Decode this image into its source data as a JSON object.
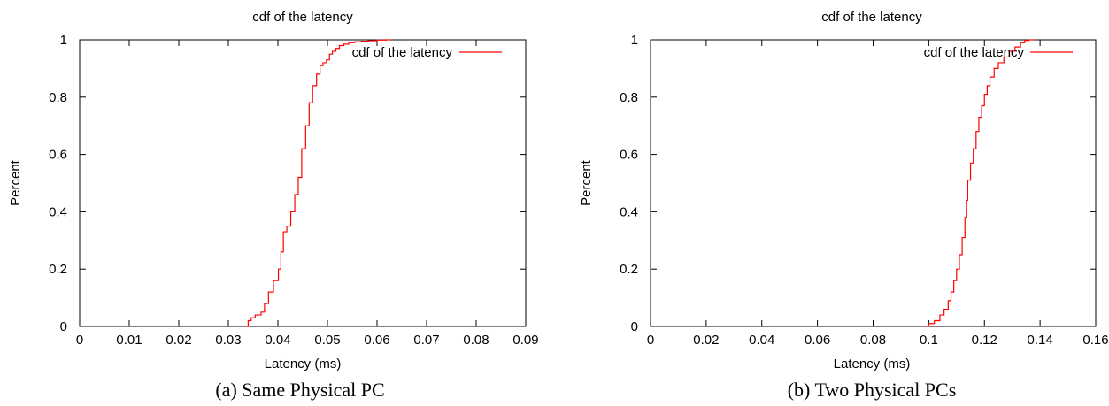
{
  "chart_data": [
    {
      "type": "line",
      "title": "cdf of the latency",
      "xlabel": "Latency (ms)",
      "ylabel": "Percent",
      "xlim": [
        0,
        0.09
      ],
      "ylim": [
        0,
        1
      ],
      "xticks": [
        "0",
        "0.01",
        "0.02",
        "0.03",
        "0.04",
        "0.05",
        "0.06",
        "0.07",
        "0.08",
        "0.09"
      ],
      "yticks": [
        "0",
        "0.2",
        "0.4",
        "0.6",
        "0.8",
        "1"
      ],
      "legend": "top-right",
      "caption": "(a) Same Physical PC",
      "color": "#ff0000",
      "series": [
        {
          "name": "cdf of the latency",
          "step": true,
          "x": [
            0.0334,
            0.034,
            0.0346,
            0.0354,
            0.0366,
            0.0373,
            0.0381,
            0.0391,
            0.0401,
            0.0406,
            0.0411,
            0.0418,
            0.0426,
            0.0434,
            0.0441,
            0.0448,
            0.0456,
            0.0463,
            0.047,
            0.0478,
            0.0485,
            0.0491,
            0.0498,
            0.0504,
            0.051,
            0.0517,
            0.0524,
            0.0533,
            0.0543,
            0.0555,
            0.0568,
            0.0582,
            0.06,
            0.0618
          ],
          "y": [
            0.0,
            0.02,
            0.03,
            0.04,
            0.05,
            0.08,
            0.12,
            0.16,
            0.2,
            0.26,
            0.33,
            0.35,
            0.4,
            0.46,
            0.52,
            0.62,
            0.7,
            0.78,
            0.84,
            0.88,
            0.91,
            0.92,
            0.93,
            0.95,
            0.96,
            0.97,
            0.98,
            0.985,
            0.99,
            0.993,
            0.995,
            0.997,
            0.999,
            1.0
          ]
        }
      ]
    },
    {
      "type": "line",
      "title": "cdf of the latency",
      "xlabel": "Latency (ms)",
      "ylabel": "Percent",
      "xlim": [
        0,
        0.16
      ],
      "ylim": [
        0,
        1
      ],
      "xticks": [
        "0",
        "0.02",
        "0.04",
        "0.06",
        "0.08",
        "0.1",
        "0.12",
        "0.14",
        "0.16"
      ],
      "yticks": [
        "0",
        "0.2",
        "0.4",
        "0.6",
        "0.8",
        "1"
      ],
      "legend": "top-right",
      "caption": "(b) Two Physical PCs",
      "color": "#ff0000",
      "series": [
        {
          "name": "cdf of the latency",
          "step": true,
          "x": [
            0.099,
            0.1,
            0.102,
            0.104,
            0.1055,
            0.107,
            0.108,
            0.109,
            0.11,
            0.111,
            0.112,
            0.113,
            0.1135,
            0.114,
            0.115,
            0.116,
            0.117,
            0.118,
            0.119,
            0.12,
            0.121,
            0.122,
            0.1235,
            0.125,
            0.127,
            0.129,
            0.131,
            0.133,
            0.1345,
            0.136
          ],
          "y": [
            0.0,
            0.01,
            0.02,
            0.04,
            0.06,
            0.09,
            0.12,
            0.16,
            0.2,
            0.25,
            0.31,
            0.38,
            0.44,
            0.51,
            0.57,
            0.62,
            0.68,
            0.73,
            0.77,
            0.81,
            0.84,
            0.87,
            0.9,
            0.92,
            0.94,
            0.96,
            0.975,
            0.99,
            0.998,
            1.0
          ]
        }
      ]
    }
  ]
}
